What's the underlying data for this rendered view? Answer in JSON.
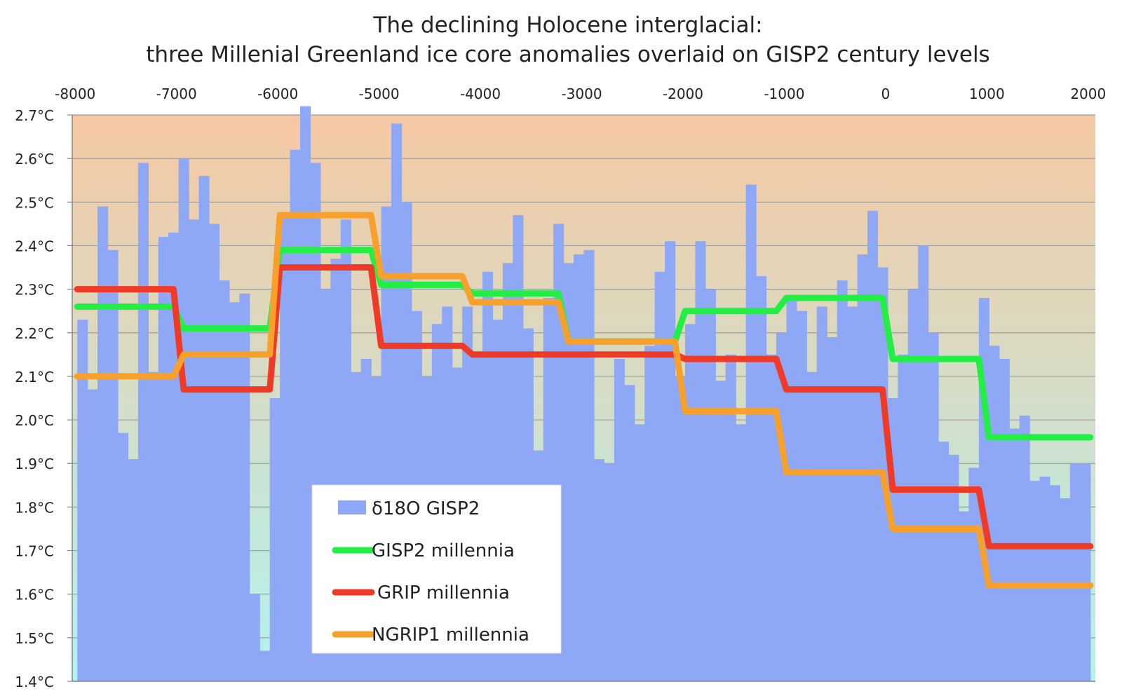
{
  "chart_data": {
    "type": "bar",
    "title": "The declining Holocene interglacial:",
    "subtitle": "three Millenial Greenland ice core anomalies overlaid on GISP2 century levels",
    "xlabel": "",
    "ylabel": "",
    "xlim": [
      -8050,
      2050
    ],
    "ylim": [
      1.4,
      2.7
    ],
    "x_ticks": [
      -8000,
      -7000,
      -6000,
      -5000,
      -4000,
      -3000,
      -2000,
      -1000,
      0,
      1000,
      2000
    ],
    "x_tick_labels": [
      "-8000",
      "-7000",
      "-6000",
      "-5000",
      "-4000",
      "-3000",
      "-2000",
      "-1000",
      "0",
      "1000",
      "2000"
    ],
    "y_ticks": [
      1.4,
      1.5,
      1.6,
      1.7,
      1.8,
      1.9,
      2.0,
      2.1,
      2.2,
      2.3,
      2.4,
      2.5,
      2.6,
      2.7
    ],
    "y_tick_labels": [
      "1.4°C",
      "1.5°C",
      "1.6°C",
      "1.7°C",
      "1.8°C",
      "1.9°C",
      "2.0°C",
      "2.1°C",
      "2.2°C",
      "2.3°C",
      "2.4°C",
      "2.5°C",
      "2.6°C",
      "2.7°C"
    ],
    "grid": true,
    "legend_position": "bottom-left",
    "background_gradient": {
      "top": "#f6c8a2",
      "bottom": "#b2f3ee"
    },
    "series": [
      {
        "name": "δ18O GISP2",
        "kind": "bar",
        "color": "#8ea8f5",
        "x": [
          -8000,
          -7900,
          -7800,
          -7700,
          -7600,
          -7500,
          -7400,
          -7300,
          -7200,
          -7100,
          -7000,
          -6900,
          -6800,
          -6700,
          -6600,
          -6500,
          -6400,
          -6300,
          -6200,
          -6100,
          -6000,
          -5900,
          -5800,
          -5700,
          -5600,
          -5500,
          -5400,
          -5300,
          -5200,
          -5100,
          -5000,
          -4900,
          -4800,
          -4700,
          -4600,
          -4500,
          -4400,
          -4300,
          -4200,
          -4100,
          -4000,
          -3900,
          -3800,
          -3700,
          -3600,
          -3500,
          -3400,
          -3300,
          -3200,
          -3100,
          -3000,
          -2900,
          -2800,
          -2700,
          -2600,
          -2500,
          -2400,
          -2300,
          -2200,
          -2100,
          -2000,
          -1900,
          -1800,
          -1700,
          -1600,
          -1500,
          -1400,
          -1300,
          -1200,
          -1100,
          -1000,
          -900,
          -800,
          -700,
          -600,
          -500,
          -400,
          -300,
          -200,
          -100,
          0,
          100,
          200,
          300,
          400,
          500,
          600,
          700,
          800,
          900,
          1000,
          1100,
          1200,
          1300,
          1400,
          1500,
          1600,
          1700,
          1800,
          1900
        ],
        "values": [
          2.23,
          2.07,
          2.49,
          2.39,
          1.97,
          1.91,
          2.59,
          2.11,
          2.42,
          2.43,
          2.6,
          2.46,
          2.56,
          2.45,
          2.32,
          2.27,
          2.29,
          1.6,
          1.47,
          2.05,
          2.47,
          2.62,
          2.72,
          2.59,
          2.3,
          2.37,
          2.46,
          2.11,
          2.14,
          2.1,
          2.49,
          2.68,
          2.5,
          2.25,
          2.1,
          2.22,
          2.26,
          2.12,
          2.26,
          2.15,
          2.34,
          2.23,
          2.36,
          2.47,
          2.21,
          1.93,
          2.28,
          2.45,
          2.36,
          2.38,
          2.39,
          1.91,
          1.9,
          2.14,
          2.08,
          1.99,
          2.17,
          2.34,
          2.41,
          2.1,
          2.22,
          2.41,
          2.3,
          2.09,
          2.15,
          1.99,
          2.54,
          2.33,
          2.15,
          2.2,
          2.28,
          2.25,
          2.11,
          2.26,
          2.19,
          2.32,
          2.26,
          2.38,
          2.48,
          2.35,
          2.05,
          2.15,
          2.3,
          2.4,
          2.2,
          1.95,
          1.92,
          1.79,
          1.89,
          2.28,
          2.17,
          2.14,
          1.98,
          2.01,
          1.86,
          1.87,
          1.85,
          1.82,
          1.9,
          1.9
        ]
      },
      {
        "name": "GISP2 millennia",
        "kind": "step",
        "color": "#22ee44",
        "points": [
          [
            -8000,
            2.26
          ],
          [
            -7050,
            2.26
          ],
          [
            -6950,
            2.21
          ],
          [
            -6100,
            2.21
          ],
          [
            -6000,
            2.39
          ],
          [
            -5100,
            2.39
          ],
          [
            -5000,
            2.31
          ],
          [
            -4200,
            2.31
          ],
          [
            -4100,
            2.29
          ],
          [
            -3250,
            2.29
          ],
          [
            -3150,
            2.18
          ],
          [
            -2100,
            2.18
          ],
          [
            -2000,
            2.25
          ],
          [
            -1100,
            2.25
          ],
          [
            -1000,
            2.28
          ],
          [
            -50,
            2.28
          ],
          [
            50,
            2.14
          ],
          [
            900,
            2.14
          ],
          [
            1000,
            1.96
          ],
          [
            2000,
            1.96
          ]
        ]
      },
      {
        "name": "GRIP millennia",
        "kind": "step",
        "color": "#f03a28",
        "points": [
          [
            -8000,
            2.3
          ],
          [
            -7050,
            2.3
          ],
          [
            -6950,
            2.07
          ],
          [
            -6100,
            2.07
          ],
          [
            -6000,
            2.35
          ],
          [
            -5100,
            2.35
          ],
          [
            -5000,
            2.17
          ],
          [
            -4200,
            2.17
          ],
          [
            -4100,
            2.15
          ],
          [
            -2100,
            2.15
          ],
          [
            -2000,
            2.14
          ],
          [
            -1100,
            2.14
          ],
          [
            -1000,
            2.07
          ],
          [
            -50,
            2.07
          ],
          [
            50,
            1.84
          ],
          [
            900,
            1.84
          ],
          [
            1000,
            1.71
          ],
          [
            2000,
            1.71
          ]
        ]
      },
      {
        "name": "NGRIP1 millennia",
        "kind": "step",
        "color": "#f7a02c",
        "points": [
          [
            -8000,
            2.1
          ],
          [
            -7050,
            2.1
          ],
          [
            -6950,
            2.15
          ],
          [
            -6100,
            2.15
          ],
          [
            -6000,
            2.47
          ],
          [
            -5100,
            2.47
          ],
          [
            -5000,
            2.33
          ],
          [
            -4200,
            2.33
          ],
          [
            -4100,
            2.27
          ],
          [
            -3250,
            2.27
          ],
          [
            -3150,
            2.18
          ],
          [
            -2100,
            2.18
          ],
          [
            -2000,
            2.02
          ],
          [
            -1100,
            2.02
          ],
          [
            -1000,
            1.88
          ],
          [
            -50,
            1.88
          ],
          [
            50,
            1.75
          ],
          [
            900,
            1.75
          ],
          [
            1000,
            1.62
          ],
          [
            2000,
            1.62
          ]
        ]
      }
    ]
  }
}
